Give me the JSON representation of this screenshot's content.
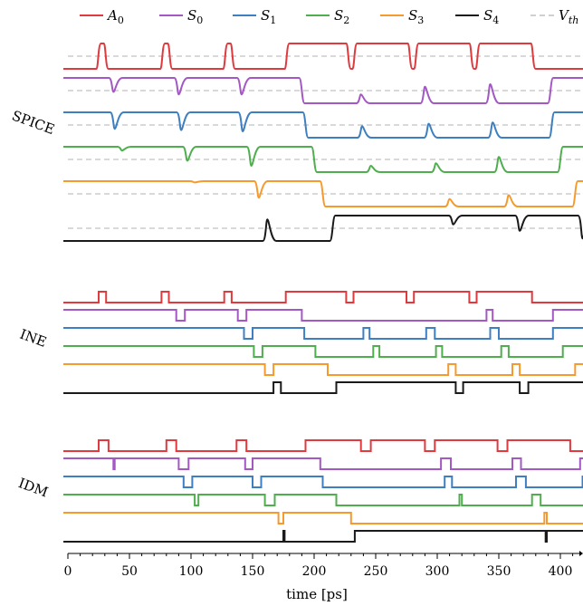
{
  "chart_data": {
    "type": "line",
    "subtype": "digital-timing-diagram",
    "xlabel": "time [ps]",
    "xlim": [
      0,
      420
    ],
    "x_ticks": [
      0,
      50,
      100,
      150,
      200,
      250,
      300,
      350,
      400
    ],
    "legend_placement": "top",
    "threshold_label": "V_th",
    "colors": {
      "A0": "#e0393e",
      "S0": "#a358c4",
      "S1": "#3d7fc0",
      "S2": "#4fae4e",
      "S3": "#f79a2e",
      "S4": "#1a1a1a",
      "Vth": "#b3b3b3"
    },
    "legend": [
      {
        "key": "A0",
        "base": "A",
        "sub": "0"
      },
      {
        "key": "S0",
        "base": "S",
        "sub": "0"
      },
      {
        "key": "S1",
        "base": "S",
        "sub": "1"
      },
      {
        "key": "S2",
        "base": "S",
        "sub": "2"
      },
      {
        "key": "S3",
        "base": "S",
        "sub": "3"
      },
      {
        "key": "S4",
        "base": "S",
        "sub": "4"
      },
      {
        "key": "Vth",
        "base": "V",
        "sub": "th"
      }
    ],
    "panels": [
      {
        "name": "SPICE",
        "analog": true,
        "series": [
          {
            "key": "A0",
            "initial": 0,
            "transitions": [
              25,
              31,
              77,
              83,
              128,
              134,
              178,
              228,
              233,
              278,
              283,
              328,
              333,
              378
            ]
          },
          {
            "key": "S0",
            "initial": 1,
            "transitions": [],
            "glitches": [
              [
                37,
                0.55
              ],
              [
                90,
                0.65
              ],
              [
                141,
                0.65
              ],
              [
                190,
                1.0
              ],
              [
                238,
                0.35
              ],
              [
                290,
                0.65
              ],
              [
                343,
                0.75
              ],
              [
                392,
                1.0
              ]
            ]
          },
          {
            "key": "S1",
            "initial": 1,
            "transitions": [],
            "glitches": [
              [
                38,
                0.65
              ],
              [
                92,
                0.7
              ],
              [
                142,
                0.75
              ],
              [
                193,
                1.0
              ],
              [
                239,
                0.45
              ],
              [
                293,
                0.55
              ],
              [
                345,
                0.6
              ],
              [
                393,
                1.0
              ]
            ]
          },
          {
            "key": "S2",
            "initial": 1,
            "transitions": [],
            "glitches": [
              [
                44,
                0.15
              ],
              [
                97,
                0.55
              ],
              [
                149,
                0.75
              ],
              [
                200,
                1.0
              ],
              [
                246,
                0.25
              ],
              [
                299,
                0.35
              ],
              [
                350,
                0.6
              ],
              [
                400,
                1.0
              ]
            ]
          },
          {
            "key": "S3",
            "initial": 1,
            "transitions": [],
            "glitches": [
              [
                103,
                0.05
              ],
              [
                155,
                0.65
              ],
              [
                207,
                1.0
              ],
              [
                310,
                0.3
              ],
              [
                358,
                0.45
              ],
              [
                412,
                1.0
              ]
            ]
          },
          {
            "key": "S4",
            "initial": 0,
            "transitions": [],
            "glitches": [
              [
                162,
                0.85
              ],
              [
                215,
                1.0
              ],
              [
                313,
                0.35
              ],
              [
                367,
                0.6
              ],
              [
                418,
                0.9
              ]
            ]
          }
        ]
      },
      {
        "name": "INE",
        "analog": false,
        "series": [
          {
            "key": "A0",
            "initial": 0,
            "transitions": [
              25,
              31,
              76,
              82,
              127,
              133,
              177,
              226,
              232,
              275,
              281,
              326,
              332,
              377
            ]
          },
          {
            "key": "S0",
            "initial": 1,
            "transitions": [
              88,
              95,
              138,
              145,
              190,
              340,
              345,
              394
            ]
          },
          {
            "key": "S1",
            "initial": 1,
            "transitions": [
              143,
              150,
              192,
              240,
              245,
              291,
              298,
              343,
              350,
              394
            ]
          },
          {
            "key": "S2",
            "initial": 1,
            "transitions": [
              151,
              158,
              201,
              248,
              253,
              299,
              304,
              352,
              358,
              402
            ]
          },
          {
            "key": "S3",
            "initial": 1,
            "transitions": [
              160,
              167,
              211,
              309,
              315,
              361,
              367,
              412
            ]
          },
          {
            "key": "S4",
            "initial": 0,
            "transitions": [
              167,
              173,
              218,
              315,
              321,
              367,
              374,
              420
            ]
          }
        ]
      },
      {
        "name": "IDM",
        "analog": false,
        "series": [
          {
            "key": "A0",
            "initial": 0,
            "transitions": [
              25,
              33,
              80,
              88,
              137,
              145,
              193,
              238,
              246,
              290,
              298,
              349,
              357,
              408
            ]
          },
          {
            "key": "S0",
            "initial": 1,
            "transitions": [
              37,
              38,
              90,
              98,
              144,
              150,
              205,
              303,
              311,
              361,
              368,
              416
            ]
          },
          {
            "key": "S1",
            "initial": 1,
            "transitions": [
              94,
              101,
              150,
              157,
              207,
              306,
              312,
              364,
              372,
              418
            ]
          },
          {
            "key": "S2",
            "initial": 1,
            "transitions": [
              103,
              106,
              160,
              168,
              218,
              318,
              320,
              377,
              384
            ]
          },
          {
            "key": "S3",
            "initial": 1,
            "transitions": [
              171,
              175,
              230,
              387,
              389
            ]
          },
          {
            "key": "S4",
            "initial": 0,
            "transitions": [
              175,
              176,
              233,
              388,
              389
            ]
          }
        ]
      }
    ]
  }
}
